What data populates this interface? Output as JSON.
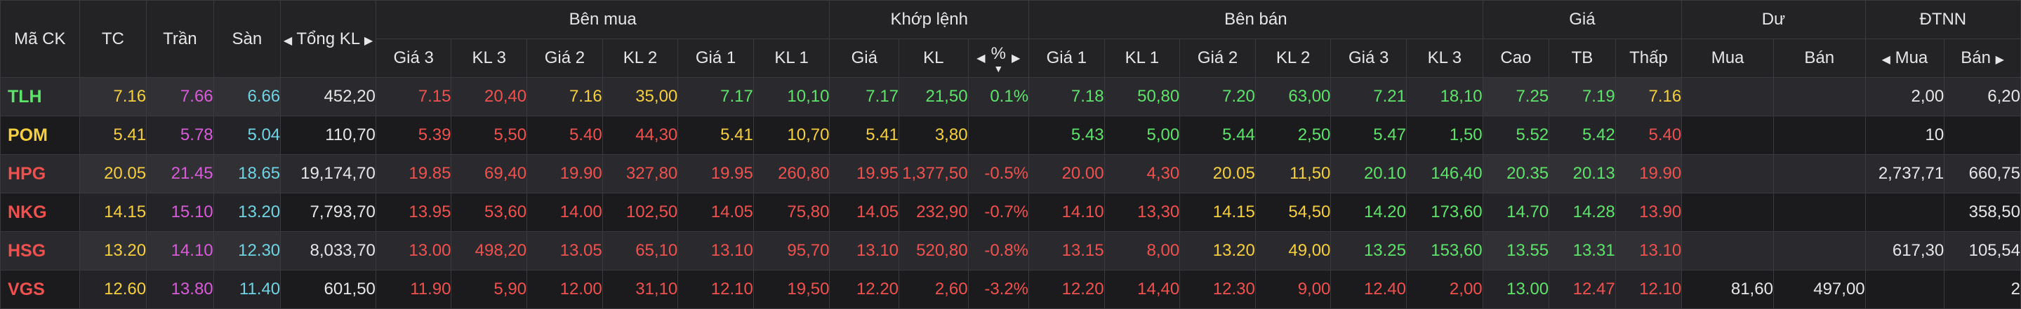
{
  "headers": {
    "symbol": "Mã CK",
    "ref": "TC",
    "ceil": "Trần",
    "floor": "Sàn",
    "total_vol": "Tổng KL",
    "buy_group": "Bên mua",
    "match_group": "Khớp lệnh",
    "sell_group": "Bên bán",
    "price_group": "Giá",
    "remain_group": "Dư",
    "foreign_group": "ĐTNN",
    "buy_cols": [
      "Giá 3",
      "KL 3",
      "Giá 2",
      "KL 2",
      "Giá 1",
      "KL 1"
    ],
    "match_cols": [
      "Giá",
      "KL",
      "%"
    ],
    "sell_cols": [
      "Giá 1",
      "KL 1",
      "Giá 2",
      "KL 2",
      "Giá 3",
      "KL 3"
    ],
    "price_cols": [
      "Cao",
      "TB",
      "Thấp"
    ],
    "remain_cols": [
      "Mua",
      "Bán"
    ],
    "foreign_cols": [
      "Mua",
      "Bán"
    ]
  },
  "colors": {
    "ref": "#f5cf3d",
    "ceil": "#d95bd9",
    "floor": "#6fd3e3",
    "up": "#5ee36a",
    "down": "#f0514e"
  },
  "rows": [
    {
      "sym": "TLH",
      "sym_c": "up",
      "tc": "7.16",
      "tran": "7.66",
      "san": "6.66",
      "tkl": "452,20",
      "cells": [
        [
          "7.15",
          "down"
        ],
        [
          "20,40",
          "down"
        ],
        [
          "7.16",
          "ref"
        ],
        [
          "35,00",
          "ref"
        ],
        [
          "7.17",
          "up"
        ],
        [
          "10,10",
          "up"
        ],
        [
          "7.17",
          "up"
        ],
        [
          "21,50",
          "up"
        ],
        [
          "0.1%",
          "up"
        ],
        [
          "7.18",
          "up"
        ],
        [
          "50,80",
          "up"
        ],
        [
          "7.20",
          "up"
        ],
        [
          "63,00",
          "up"
        ],
        [
          "7.21",
          "up"
        ],
        [
          "18,10",
          "up"
        ],
        [
          "7.25",
          "up"
        ],
        [
          "7.19",
          "up"
        ],
        [
          "7.16",
          "ref"
        ],
        [
          "",
          "white"
        ],
        [
          "",
          "white"
        ],
        [
          "2,00",
          "white"
        ],
        [
          "6,20",
          "white"
        ]
      ]
    },
    {
      "sym": "POM",
      "sym_c": "ref",
      "tc": "5.41",
      "tran": "5.78",
      "san": "5.04",
      "tkl": "110,70",
      "cells": [
        [
          "5.39",
          "down"
        ],
        [
          "5,50",
          "down"
        ],
        [
          "5.40",
          "down"
        ],
        [
          "44,30",
          "down"
        ],
        [
          "5.41",
          "ref"
        ],
        [
          "10,70",
          "ref"
        ],
        [
          "5.41",
          "ref"
        ],
        [
          "3,80",
          "ref"
        ],
        [
          "",
          "ref"
        ],
        [
          "5.43",
          "up"
        ],
        [
          "5,00",
          "up"
        ],
        [
          "5.44",
          "up"
        ],
        [
          "2,50",
          "up"
        ],
        [
          "5.47",
          "up"
        ],
        [
          "1,50",
          "up"
        ],
        [
          "5.52",
          "up"
        ],
        [
          "5.42",
          "up"
        ],
        [
          "5.40",
          "down"
        ],
        [
          "",
          "white"
        ],
        [
          "",
          "white"
        ],
        [
          "10",
          "white"
        ],
        [
          "",
          "white"
        ]
      ]
    },
    {
      "sym": "HPG",
      "sym_c": "down",
      "tc": "20.05",
      "tran": "21.45",
      "san": "18.65",
      "tkl": "19,174,70",
      "cells": [
        [
          "19.85",
          "down"
        ],
        [
          "69,40",
          "down"
        ],
        [
          "19.90",
          "down"
        ],
        [
          "327,80",
          "down"
        ],
        [
          "19.95",
          "down"
        ],
        [
          "260,80",
          "down"
        ],
        [
          "19.95",
          "down"
        ],
        [
          "1,377,50",
          "down"
        ],
        [
          "-0.5%",
          "down"
        ],
        [
          "20.00",
          "down"
        ],
        [
          "4,30",
          "down"
        ],
        [
          "20.05",
          "ref"
        ],
        [
          "11,50",
          "ref"
        ],
        [
          "20.10",
          "up"
        ],
        [
          "146,40",
          "up"
        ],
        [
          "20.35",
          "up"
        ],
        [
          "20.13",
          "up"
        ],
        [
          "19.90",
          "down"
        ],
        [
          "",
          "white"
        ],
        [
          "",
          "white"
        ],
        [
          "2,737,71",
          "white"
        ],
        [
          "660,75",
          "white"
        ]
      ]
    },
    {
      "sym": "NKG",
      "sym_c": "down",
      "tc": "14.15",
      "tran": "15.10",
      "san": "13.20",
      "tkl": "7,793,70",
      "cells": [
        [
          "13.95",
          "down"
        ],
        [
          "53,60",
          "down"
        ],
        [
          "14.00",
          "down"
        ],
        [
          "102,50",
          "down"
        ],
        [
          "14.05",
          "down"
        ],
        [
          "75,80",
          "down"
        ],
        [
          "14.05",
          "down"
        ],
        [
          "232,90",
          "down"
        ],
        [
          "-0.7%",
          "down"
        ],
        [
          "14.10",
          "down"
        ],
        [
          "13,30",
          "down"
        ],
        [
          "14.15",
          "ref"
        ],
        [
          "54,50",
          "ref"
        ],
        [
          "14.20",
          "up"
        ],
        [
          "173,60",
          "up"
        ],
        [
          "14.70",
          "up"
        ],
        [
          "14.28",
          "up"
        ],
        [
          "13.90",
          "down"
        ],
        [
          "",
          "white"
        ],
        [
          "",
          "white"
        ],
        [
          "",
          "white"
        ],
        [
          "358,50",
          "white"
        ]
      ]
    },
    {
      "sym": "HSG",
      "sym_c": "down",
      "tc": "13.20",
      "tran": "14.10",
      "san": "12.30",
      "tkl": "8,033,70",
      "cells": [
        [
          "13.00",
          "down"
        ],
        [
          "498,20",
          "down"
        ],
        [
          "13.05",
          "down"
        ],
        [
          "65,10",
          "down"
        ],
        [
          "13.10",
          "down"
        ],
        [
          "95,70",
          "down"
        ],
        [
          "13.10",
          "down"
        ],
        [
          "520,80",
          "down"
        ],
        [
          "-0.8%",
          "down"
        ],
        [
          "13.15",
          "down"
        ],
        [
          "8,00",
          "down"
        ],
        [
          "13.20",
          "ref"
        ],
        [
          "49,00",
          "ref"
        ],
        [
          "13.25",
          "up"
        ],
        [
          "153,60",
          "up"
        ],
        [
          "13.55",
          "up"
        ],
        [
          "13.31",
          "up"
        ],
        [
          "13.10",
          "down"
        ],
        [
          "",
          "white"
        ],
        [
          "",
          "white"
        ],
        [
          "617,30",
          "white"
        ],
        [
          "105,54",
          "white"
        ]
      ]
    },
    {
      "sym": "VGS",
      "sym_c": "down",
      "tc": "12.60",
      "tran": "13.80",
      "san": "11.40",
      "tkl": "601,50",
      "cells": [
        [
          "11.90",
          "down"
        ],
        [
          "5,90",
          "down"
        ],
        [
          "12.00",
          "down"
        ],
        [
          "31,10",
          "down"
        ],
        [
          "12.10",
          "down"
        ],
        [
          "19,50",
          "down"
        ],
        [
          "12.20",
          "down"
        ],
        [
          "2,60",
          "down"
        ],
        [
          "-3.2%",
          "down"
        ],
        [
          "12.20",
          "down"
        ],
        [
          "14,40",
          "down"
        ],
        [
          "12.30",
          "down"
        ],
        [
          "9,00",
          "down"
        ],
        [
          "12.40",
          "down"
        ],
        [
          "2,00",
          "down"
        ],
        [
          "13.00",
          "up"
        ],
        [
          "12.47",
          "down"
        ],
        [
          "12.10",
          "down"
        ],
        [
          "81,60",
          "white"
        ],
        [
          "497,00",
          "white"
        ],
        [
          "",
          "white"
        ],
        [
          "2",
          "white"
        ]
      ]
    }
  ]
}
